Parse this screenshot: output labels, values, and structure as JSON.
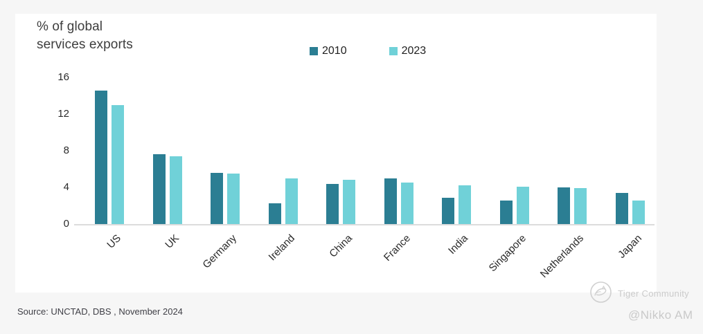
{
  "page": {
    "background_color": "#f6f6f6",
    "card_color": "#ffffff"
  },
  "chart_data": {
    "type": "bar",
    "title": "% of global\nservices exports",
    "categories": [
      "US",
      "UK",
      "Germany",
      "Ireland",
      "China",
      "France",
      "India",
      "Singapore",
      "Netherlands",
      "Japan"
    ],
    "series": [
      {
        "name": "2010",
        "color": "#2b7e93",
        "values": [
          14.6,
          7.6,
          5.6,
          2.3,
          4.4,
          5.0,
          2.9,
          2.6,
          4.0,
          3.4
        ]
      },
      {
        "name": "2023",
        "color": "#70d1d8",
        "values": [
          13.0,
          7.4,
          5.5,
          5.0,
          4.8,
          4.5,
          4.2,
          4.1,
          3.9,
          2.6
        ]
      }
    ],
    "ylabel": "% of global services exports",
    "ylim": [
      0,
      16
    ],
    "yticks": [
      0,
      4,
      8,
      12,
      16
    ],
    "grid": false,
    "legend_position": "top-center",
    "x_label_rotation_deg": -45,
    "axis_line_color": "#dcdcdc"
  },
  "footer": {
    "source": "Source: UNCTAD, DBS , November 2024"
  },
  "watermark": {
    "community_label": "Tiger Community",
    "account_label": "@Nikko AM",
    "logo_icon": "tiger-logo",
    "color": "#cbcbcb"
  }
}
